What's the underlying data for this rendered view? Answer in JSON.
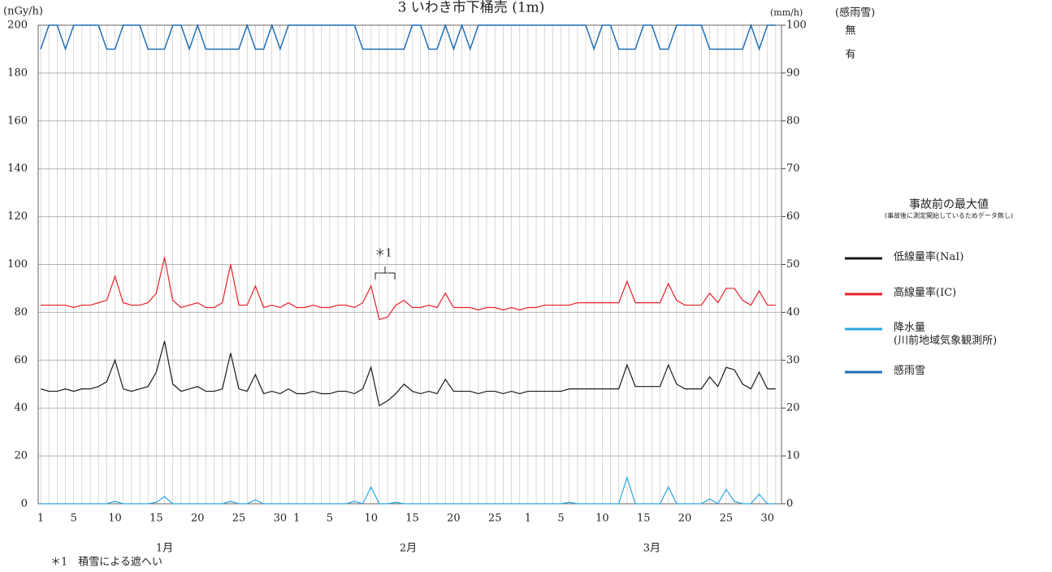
{
  "chart_data": {
    "type": "line",
    "title": "3 いわき市下桶売 (1m)",
    "y_label": "(nGy/h)",
    "y2_label": "(mm/h)",
    "y3_label": "(感雨雪)",
    "ylim": [
      0,
      200
    ],
    "yticks": [
      0,
      20,
      40,
      60,
      80,
      100,
      120,
      140,
      160,
      180,
      200
    ],
    "y2lim": [
      0,
      100
    ],
    "y2ticks": [
      0,
      10,
      20,
      30,
      40,
      50,
      60,
      70,
      80,
      90,
      100
    ],
    "y3ticks": [
      {
        "value": 0,
        "label": "無"
      },
      {
        "value": 1,
        "label": "有"
      }
    ],
    "grid": true,
    "categories": [
      1,
      null,
      null,
      null,
      5,
      null,
      null,
      null,
      null,
      10,
      null,
      null,
      null,
      null,
      15,
      null,
      null,
      null,
      null,
      20,
      null,
      null,
      null,
      null,
      25,
      null,
      null,
      null,
      null,
      30,
      null,
      1,
      null,
      null,
      null,
      5,
      null,
      null,
      null,
      null,
      10,
      null,
      null,
      null,
      null,
      15,
      null,
      null,
      null,
      null,
      20,
      null,
      null,
      null,
      null,
      25,
      null,
      null,
      null,
      1,
      null,
      null,
      null,
      5,
      null,
      null,
      null,
      null,
      10,
      null,
      null,
      null,
      null,
      15,
      null,
      null,
      null,
      null,
      20,
      null,
      null,
      null,
      null,
      25,
      null,
      null,
      null,
      null,
      30,
      null
    ],
    "month_labels": [
      "1月",
      "2月",
      "3月"
    ],
    "legend_title": "事故前の最大値",
    "legend_subtitle": "(事故後に測定開始しているためデータ無し)",
    "annotation": "＊1",
    "footnote": "＊1　積雪による遮へい",
    "series": [
      {
        "name": "低線量率(NaI)",
        "color": "#1a1a1a",
        "values": [
          48,
          47,
          47,
          48,
          47,
          48,
          48,
          49,
          51,
          60,
          48,
          47,
          48,
          49,
          55,
          68,
          50,
          47,
          48,
          49,
          47,
          47,
          48,
          63,
          48,
          47,
          54,
          46,
          47,
          46,
          48,
          46,
          46,
          47,
          46,
          46,
          47,
          47,
          46,
          48,
          57,
          41,
          43,
          46,
          50,
          47,
          46,
          47,
          46,
          52,
          47,
          47,
          47,
          46,
          47,
          47,
          46,
          47,
          46,
          47,
          47,
          47,
          47,
          47,
          48,
          48,
          48,
          48,
          48,
          48,
          48,
          58,
          49,
          49,
          49,
          49,
          58,
          50,
          48,
          48,
          48,
          53,
          49,
          57,
          56,
          50,
          48,
          55,
          48,
          48
        ]
      },
      {
        "name": "高線量率(IC)",
        "color": "#e8202a",
        "values": [
          83,
          83,
          83,
          83,
          82,
          83,
          83,
          84,
          85,
          95,
          84,
          83,
          83,
          84,
          88,
          103,
          85,
          82,
          83,
          84,
          82,
          82,
          84,
          100,
          83,
          83,
          91,
          82,
          83,
          82,
          84,
          82,
          82,
          83,
          82,
          82,
          83,
          83,
          82,
          84,
          91,
          77,
          78,
          83,
          85,
          82,
          82,
          83,
          82,
          88,
          82,
          82,
          82,
          81,
          82,
          82,
          81,
          82,
          81,
          82,
          82,
          83,
          83,
          83,
          83,
          84,
          84,
          84,
          84,
          84,
          84,
          93,
          84,
          84,
          84,
          84,
          92,
          85,
          83,
          83,
          83,
          88,
          84,
          90,
          90,
          85,
          83,
          89,
          83,
          83
        ]
      },
      {
        "name": "降水量\n(川前地域気象観測所)",
        "color": "#29a8e0",
        "axis": "y2",
        "values": [
          0,
          0,
          0,
          0,
          0,
          0,
          0,
          0,
          0,
          0.5,
          0,
          0,
          0,
          0,
          0.3,
          1.5,
          0,
          0,
          0,
          0,
          0,
          0,
          0,
          0.5,
          0,
          0,
          0.8,
          0,
          0,
          0,
          0,
          0,
          0,
          0,
          0,
          0,
          0,
          0,
          0.5,
          0,
          3.5,
          0,
          0,
          0.3,
          0,
          0,
          0,
          0,
          0,
          0,
          0,
          0,
          0,
          0,
          0,
          0,
          0,
          0,
          0,
          0,
          0,
          0,
          0,
          0,
          0.3,
          0,
          0,
          0,
          0,
          0,
          0,
          5.5,
          0,
          0,
          0,
          0,
          3.5,
          0,
          0,
          0,
          0,
          1,
          0,
          3,
          0.5,
          0,
          0,
          2,
          0,
          0
        ]
      },
      {
        "name": "感雨雪",
        "color": "#1f6fb5",
        "axis": "y3",
        "values": [
          1,
          0,
          0,
          1,
          0,
          0,
          0,
          0,
          1,
          1,
          0,
          0,
          0,
          1,
          1,
          1,
          0,
          0,
          1,
          0,
          1,
          1,
          1,
          1,
          1,
          0,
          1,
          1,
          0,
          1,
          0,
          0,
          0,
          0,
          0,
          0,
          0,
          0,
          0,
          1,
          1,
          1,
          1,
          1,
          1,
          0,
          0,
          1,
          1,
          0,
          1,
          0,
          1,
          0,
          0,
          0,
          0,
          0,
          0,
          0,
          0,
          0,
          0,
          0,
          0,
          0,
          0,
          1,
          0,
          0,
          1,
          1,
          1,
          0,
          0,
          1,
          1,
          0,
          0,
          0,
          0,
          1,
          1,
          1,
          1,
          1,
          0,
          1,
          0,
          0
        ]
      }
    ]
  }
}
